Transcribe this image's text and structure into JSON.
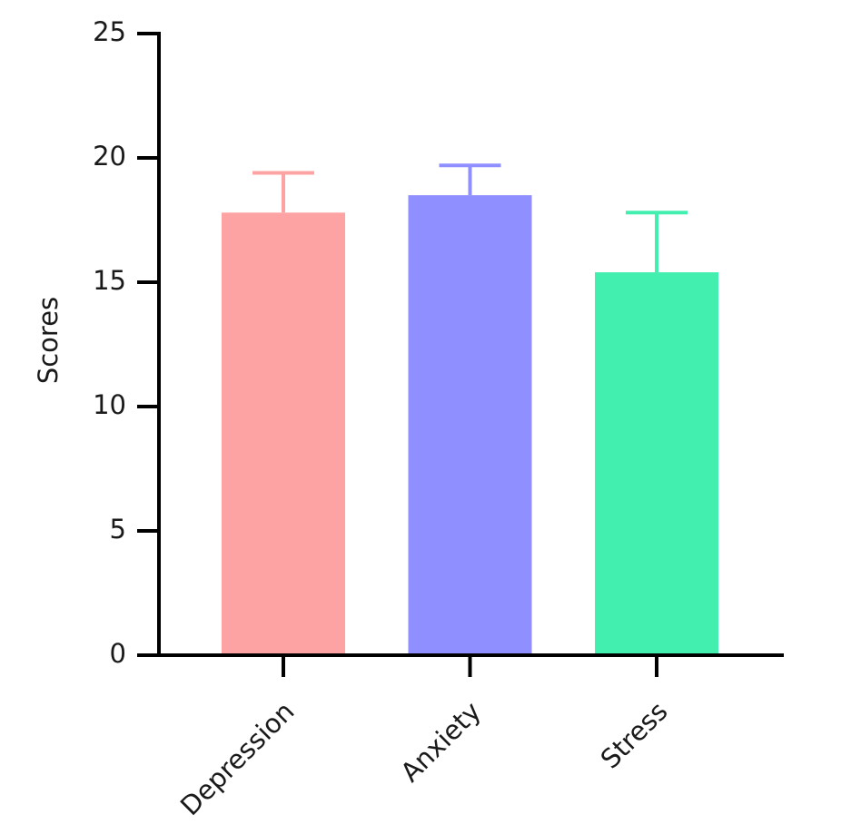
{
  "chart_data": {
    "type": "bar",
    "y_label": "Scores",
    "categories": [
      "Depression",
      "Anxiety",
      "Stress"
    ],
    "values": [
      17.8,
      18.5,
      15.4
    ],
    "errors": [
      1.6,
      1.2,
      2.4
    ],
    "colors": [
      "#fda3a3",
      "#8f8fff",
      "#43efaf"
    ],
    "ylim": [
      0,
      25
    ],
    "yticks": [
      0,
      5,
      10,
      15,
      20,
      25
    ]
  }
}
